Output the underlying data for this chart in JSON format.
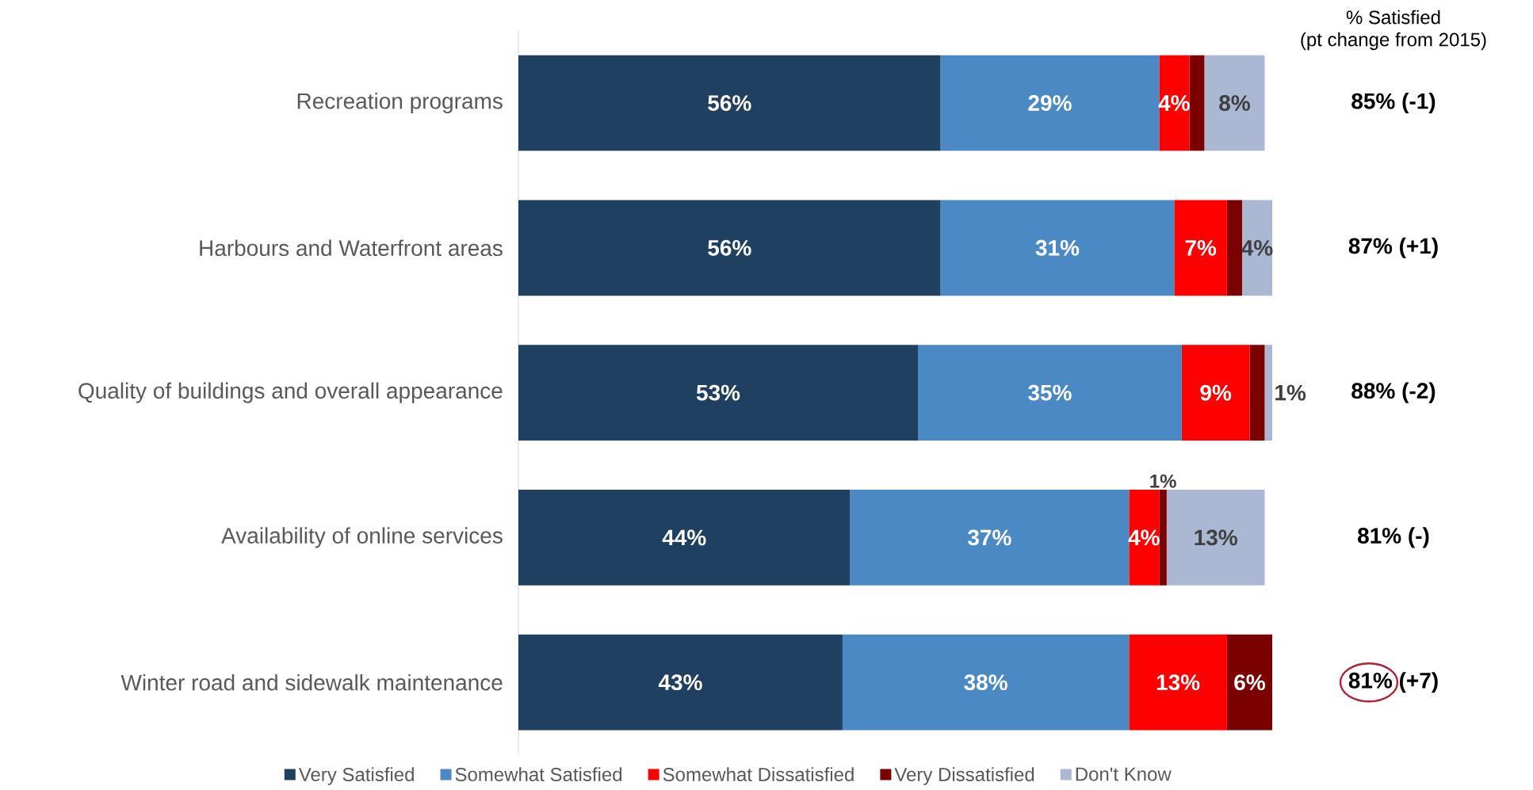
{
  "chart_data": {
    "type": "bar",
    "orientation": "horizontal",
    "stacked": true,
    "legend": "bottom",
    "categories": [
      "Recreation programs",
      "Harbours and Waterfront areas",
      "Quality of buildings and overall appearance",
      "Availability of online services",
      "Winter road and sidewalk maintenance"
    ],
    "series": [
      {
        "name": "Very Satisfied",
        "color": "#1f4060",
        "values": [
          56,
          56,
          53,
          44,
          43
        ],
        "value_labels": [
          "56%",
          "56%",
          "53%",
          "44%",
          "43%"
        ]
      },
      {
        "name": "Somewhat Satisfied",
        "color": "#4a89c4",
        "values": [
          29,
          31,
          35,
          37,
          38
        ],
        "value_labels": [
          "29%",
          "31%",
          "35%",
          "37%",
          "38%"
        ]
      },
      {
        "name": "Somewhat Dissatisfied",
        "color": "#ff0000",
        "values": [
          4,
          7,
          9,
          4,
          13
        ],
        "value_labels": [
          "4%",
          "7%",
          "9%",
          "4%",
          "13%"
        ]
      },
      {
        "name": "Very Dissatisfied",
        "color": "#7b0000",
        "values": [
          2,
          2,
          2,
          1,
          6
        ],
        "value_labels": [
          null,
          null,
          null,
          "1%",
          "6%"
        ]
      },
      {
        "name": "Don't Know",
        "color": "#abb8d3",
        "values": [
          8,
          4,
          1,
          13,
          0
        ],
        "value_labels": [
          "8%",
          "4%",
          "1%",
          "13%",
          null
        ]
      }
    ],
    "annotations": [
      "% Satisfied",
      "(pt change from 2015)",
      "85% (-1)",
      "87% (+1)",
      "88% (-2)",
      "81% (-)",
      "81% (+7)"
    ]
  }
}
